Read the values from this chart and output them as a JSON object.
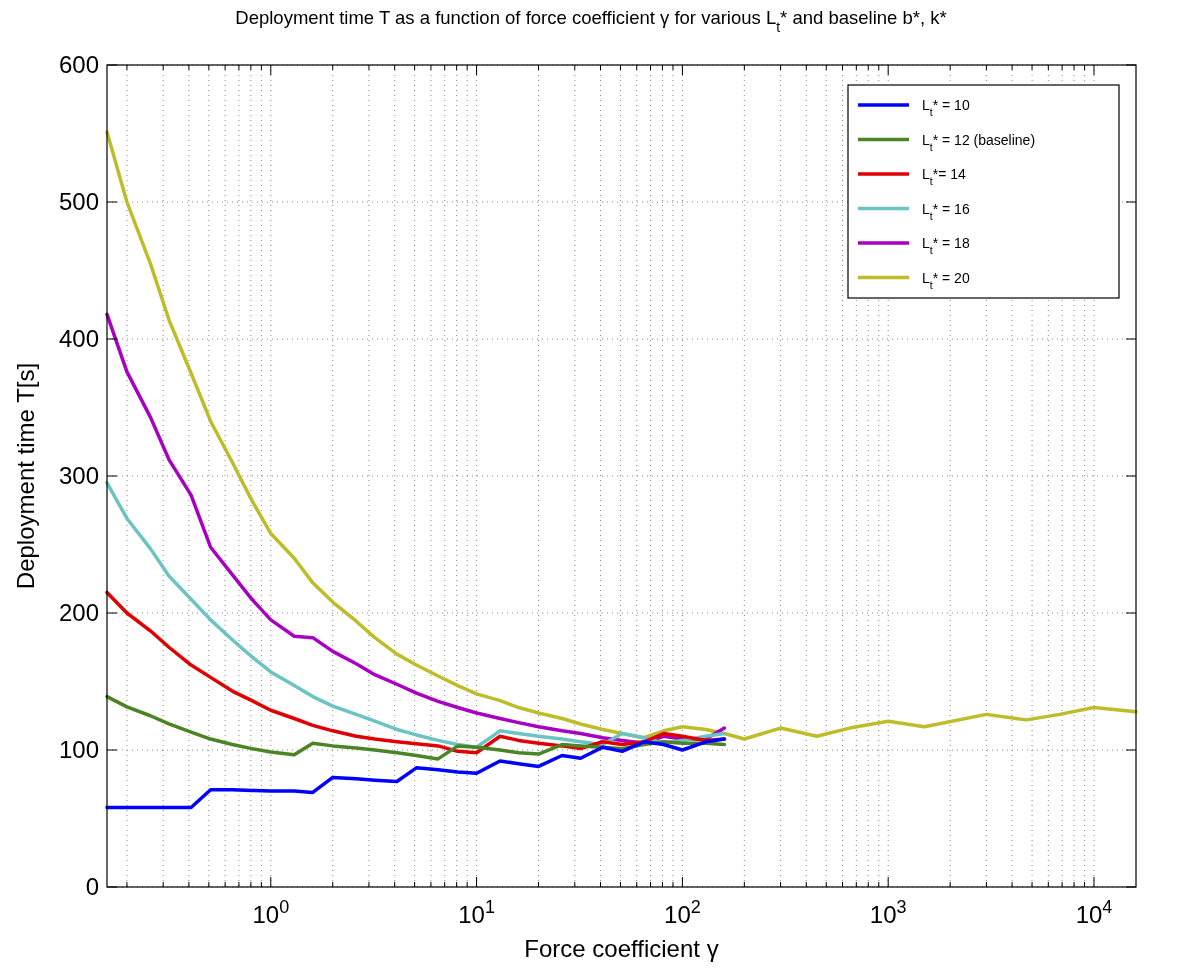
{
  "chart_data": {
    "type": "line",
    "title": "Deployment time T as a function of force coefficient γ for various L$_{t}$* and baseline b*, k*",
    "xlabel": "Force coefficient γ",
    "ylabel": "Deployment time T[s]",
    "log": "x",
    "grid": true,
    "legend": "top right",
    "line_style": "solid",
    "marker": "none",
    "xlim": [
      0.16,
      16000
    ],
    "ylim": [
      0,
      600
    ],
    "xticks": [
      {
        "value": 1,
        "label": "10$^{0}$"
      },
      {
        "value": 10,
        "label": "10$^{1}$"
      },
      {
        "value": 100,
        "label": "10$^{2}$"
      },
      {
        "value": 1000,
        "label": "10$^{3}$"
      },
      {
        "value": 10000,
        "label": "10$^{4}$"
      }
    ],
    "yticks": [
      0,
      100,
      200,
      300,
      400,
      500,
      600
    ],
    "x": [
      0.16,
      0.2,
      0.26,
      0.32,
      0.41,
      0.51,
      0.65,
      0.81,
      1,
      1.3,
      1.6,
      2,
      2.6,
      3.2,
      4.1,
      5.1,
      6.5,
      8.1,
      10,
      13,
      16,
      20,
      26,
      32,
      41,
      51,
      65,
      81,
      100,
      130,
      160
    ],
    "series": [
      {
        "name": "L$_{t}$* = 10",
        "color": "#0000ff",
        "values": [
          58,
          58,
          58,
          58,
          58,
          71,
          71,
          70.5,
          70,
          70,
          69,
          80,
          79,
          78,
          77,
          87,
          85.5,
          84,
          83,
          92,
          90,
          88,
          96,
          94,
          102,
          99,
          106,
          104,
          100,
          106,
          108
        ]
      },
      {
        "name": "L$_{t}$* = 12 (baseline)",
        "color": "#4a8424",
        "values": [
          139,
          131.5,
          125,
          119,
          113,
          108,
          104,
          101,
          98.5,
          96.5,
          105,
          103,
          101.5,
          100,
          98,
          96,
          93.5,
          103,
          102,
          100,
          98,
          97,
          104,
          103,
          102,
          101,
          104,
          106,
          105,
          105,
          104
        ]
      },
      {
        "name": "L$_{t}$*= 14",
        "color": "#e00000",
        "values": [
          215,
          200,
          187,
          175,
          162,
          153,
          143,
          136,
          129,
          123,
          118,
          114,
          110,
          108,
          106,
          104.5,
          103,
          99,
          98,
          110,
          107,
          105,
          103,
          101,
          106,
          104,
          106,
          112,
          110,
          107,
          108
        ]
      },
      {
        "name": "L$_{t}$* = 16",
        "color": "#6cc3c3",
        "values": [
          295,
          269,
          247,
          227,
          210,
          195,
          180.5,
          168,
          157,
          147,
          139,
          132,
          126,
          121,
          115,
          111,
          107,
          104,
          102,
          114,
          112,
          110,
          108,
          106,
          104,
          112,
          109,
          105,
          107,
          110,
          112
        ]
      },
      {
        "name": "L$_{t}$* = 18",
        "color": "#a800c0",
        "values": [
          418,
          376,
          343,
          312,
          286,
          248,
          228,
          210,
          195,
          183,
          182,
          172,
          163,
          155,
          148,
          141.5,
          135.5,
          131,
          127,
          123,
          120,
          117,
          114,
          112,
          109,
          107,
          105,
          110,
          108,
          108,
          116
        ]
      },
      {
        "name": "L$_{t}$* = 20",
        "color": "#bdbd2a",
        "x": [
          0.16,
          0.2,
          0.26,
          0.32,
          0.41,
          0.51,
          0.65,
          0.81,
          1,
          1.3,
          1.6,
          2,
          2.6,
          3.2,
          4.1,
          5.1,
          6.5,
          8.1,
          10,
          13,
          16,
          20,
          26,
          32,
          41,
          51,
          65,
          81,
          100,
          130,
          160,
          200,
          300,
          450,
          650,
          1000,
          1500,
          3000,
          4700,
          6800,
          10000,
          16000
        ],
        "values": [
          551,
          500,
          455,
          414,
          375,
          340,
          310,
          282,
          258,
          240,
          222,
          208,
          194,
          182,
          170,
          162,
          154,
          147,
          141,
          136,
          131,
          127,
          123,
          119,
          115,
          112,
          109,
          114,
          117,
          115,
          112,
          108,
          116,
          110,
          116,
          121,
          117,
          126,
          122,
          126,
          131,
          128
        ]
      }
    ]
  }
}
